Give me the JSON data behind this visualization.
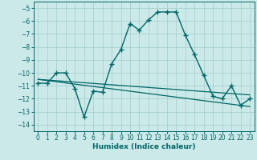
{
  "xlabel": "Humidex (Indice chaleur)",
  "bg_color": "#cce9e9",
  "grid_color": "#a8d0d0",
  "line_color": "#006666",
  "xlim": [
    -0.5,
    23.5
  ],
  "ylim": [
    -14.5,
    -4.5
  ],
  "yticks": [
    -14,
    -13,
    -12,
    -11,
    -10,
    -9,
    -8,
    -7,
    -6,
    -5
  ],
  "xticks": [
    0,
    1,
    2,
    3,
    4,
    5,
    6,
    7,
    8,
    9,
    10,
    11,
    12,
    13,
    14,
    15,
    16,
    17,
    18,
    19,
    20,
    21,
    22,
    23
  ],
  "line1_x": [
    0,
    1,
    2,
    3,
    4,
    5,
    6,
    7,
    8,
    9,
    10,
    11,
    12,
    13,
    14,
    15,
    16,
    17,
    18,
    19,
    20,
    21,
    22,
    23
  ],
  "line1_y": [
    -10.8,
    -10.8,
    -10.0,
    -10.0,
    -11.2,
    -13.4,
    -11.4,
    -11.5,
    -9.3,
    -8.2,
    -6.2,
    -6.7,
    -5.9,
    -5.3,
    -5.3,
    -5.3,
    -7.1,
    -8.6,
    -10.2,
    -11.8,
    -12.0,
    -11.0,
    -12.5,
    -12.0
  ],
  "line2_x": [
    0,
    23
  ],
  "line2_y": [
    -10.5,
    -11.7
  ],
  "line3_x": [
    0,
    23
  ],
  "line3_y": [
    -10.5,
    -12.6
  ]
}
